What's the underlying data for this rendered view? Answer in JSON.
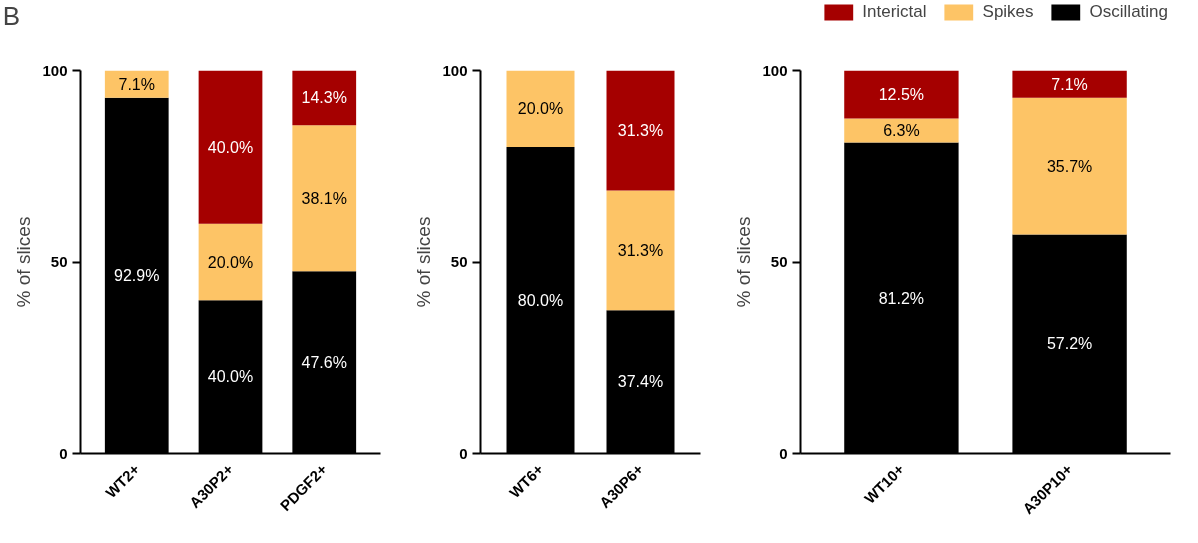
{
  "chart_data": [
    {
      "type": "bar",
      "stacked": true,
      "annotations": [
        "B"
      ],
      "ylabel": "% of slices",
      "categories": [
        "WT2+",
        "A30P2+",
        "PDGF2+"
      ],
      "ylim": [
        0,
        100
      ],
      "yticks": [
        0,
        50,
        100
      ],
      "grid": false,
      "series": [
        {
          "color": "#000000",
          "values": [
            92.9,
            40.0,
            47.6
          ],
          "value_labels": [
            "92.9%",
            "40.0%",
            "47.6%"
          ]
        },
        {
          "color": "#fdc466",
          "values": [
            7.1,
            20.0,
            38.1
          ],
          "value_labels": [
            "7.1%",
            "20.0%",
            "38.1%"
          ]
        },
        {
          "color": "#a50000",
          "values": [
            0,
            40.0,
            14.3
          ],
          "value_labels": [
            null,
            "40.0%",
            "14.3%"
          ]
        }
      ]
    },
    {
      "type": "bar",
      "stacked": true,
      "ylabel": "% of slices",
      "categories": [
        "WT6+",
        "A30P6+"
      ],
      "ylim": [
        0,
        100
      ],
      "yticks": [
        0,
        50,
        100
      ],
      "grid": false,
      "series": [
        {
          "color": "#000000",
          "values": [
            80.0,
            37.4
          ],
          "value_labels": [
            "80.0%",
            "37.4%"
          ]
        },
        {
          "color": "#fdc466",
          "values": [
            20.0,
            31.3
          ],
          "value_labels": [
            "20.0%",
            "31.3%"
          ]
        },
        {
          "color": "#a50000",
          "values": [
            0,
            31.3
          ],
          "value_labels": [
            null,
            "31.3%"
          ]
        }
      ]
    },
    {
      "type": "bar",
      "stacked": true,
      "ylabel": "% of slices",
      "categories": [
        "WT10+",
        "A30P10+"
      ],
      "ylim": [
        0,
        100
      ],
      "yticks": [
        0,
        50,
        100
      ],
      "grid": false,
      "legend": "top right",
      "series": [
        {
          "name": "Oscillating",
          "color": "#000000",
          "values": [
            81.2,
            57.2
          ],
          "value_labels": [
            "81.2%",
            "57.2%"
          ]
        },
        {
          "name": "Spikes",
          "color": "#fdc466",
          "values": [
            6.3,
            35.7
          ],
          "value_labels": [
            "6.3%",
            "35.7%"
          ]
        },
        {
          "name": "Interictal",
          "color": "#a50000",
          "values": [
            12.5,
            7.1
          ],
          "value_labels": [
            "12.5%",
            "7.1%"
          ]
        }
      ]
    }
  ]
}
